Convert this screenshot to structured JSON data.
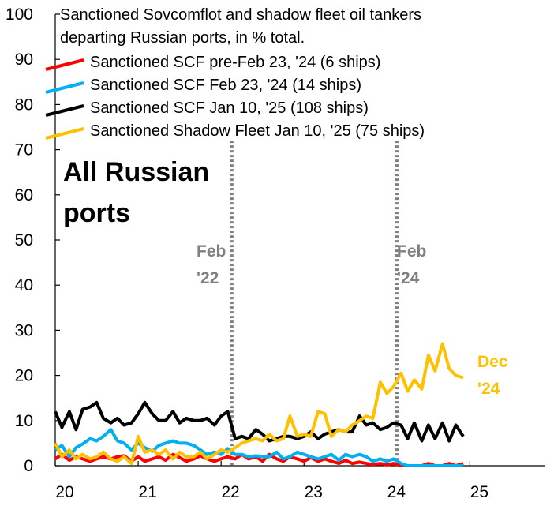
{
  "chart_data": {
    "type": "line",
    "title_lines": [
      "Sanctioned Sovcomflot and shadow fleet oil tankers",
      "departing Russian ports, in % total."
    ],
    "xlim": [
      20,
      25.9
    ],
    "ylim": [
      0,
      100
    ],
    "x_ticks": [
      20,
      21,
      22,
      23,
      24,
      25
    ],
    "x_tick_labels": [
      "20",
      "21",
      "22",
      "23",
      "24",
      "25"
    ],
    "y_ticks": [
      0,
      10,
      20,
      30,
      40,
      50,
      60,
      70,
      80,
      90,
      100
    ],
    "y_tick_labels": [
      "0",
      "10",
      "20",
      "30",
      "40",
      "50",
      "60",
      "70",
      "80",
      "90",
      "100"
    ],
    "grid": false,
    "legend_position": "top-left",
    "annotations": {
      "region_lines": [
        "All Russian",
        "ports"
      ],
      "feb22": [
        "Feb",
        "'22"
      ],
      "feb24": [
        "Feb",
        "'24"
      ],
      "dec24": [
        "Dec",
        "'24"
      ]
    },
    "vlines": [
      22.13,
      24.12
    ],
    "series": [
      {
        "name": "Sanctioned SCF pre-Feb 23, '24 (6 ships)",
        "color": "#FF0000",
        "x": [
          20.0,
          20.08,
          20.17,
          20.25,
          20.33,
          20.42,
          20.5,
          20.58,
          20.67,
          20.75,
          20.83,
          20.92,
          21.0,
          21.08,
          21.17,
          21.25,
          21.33,
          21.42,
          21.5,
          21.58,
          21.67,
          21.75,
          21.83,
          21.92,
          22.0,
          22.08,
          22.17,
          22.25,
          22.33,
          22.42,
          22.5,
          22.58,
          22.67,
          22.75,
          22.83,
          22.92,
          23.0,
          23.08,
          23.17,
          23.25,
          23.33,
          23.42,
          23.5,
          23.58,
          23.67,
          23.75,
          23.83,
          23.92,
          24.0,
          24.08,
          24.17,
          24.25,
          24.33,
          24.42,
          24.5,
          24.58,
          24.67,
          24.75,
          24.83,
          24.92
        ],
        "values": [
          1.5,
          2.5,
          1.2,
          2.0,
          1.5,
          1.0,
          1.5,
          2.0,
          1.5,
          2.0,
          2.2,
          1.0,
          2.0,
          1.0,
          1.5,
          2.0,
          1.2,
          2.5,
          1.8,
          1.0,
          1.5,
          2.2,
          1.5,
          1.0,
          1.5,
          2.0,
          1.5,
          2.5,
          1.5,
          2.0,
          1.0,
          2.5,
          1.5,
          1.0,
          2.0,
          1.5,
          1.0,
          1.8,
          1.0,
          1.5,
          1.0,
          0.5,
          1.2,
          0.5,
          0.8,
          0.5,
          0.3,
          0.5,
          0.2,
          0.5,
          0.0,
          0.0,
          0.0,
          0.0,
          0.5,
          0.0,
          0.0,
          0.5,
          0.0,
          0.5
        ]
      },
      {
        "name": "Sanctioned SCF Feb 23, '24 (14 ships)",
        "color": "#00B0F0",
        "x": [
          20.0,
          20.08,
          20.17,
          20.25,
          20.33,
          20.42,
          20.5,
          20.58,
          20.67,
          20.75,
          20.83,
          20.92,
          21.0,
          21.08,
          21.17,
          21.25,
          21.33,
          21.42,
          21.5,
          21.58,
          21.67,
          21.75,
          21.83,
          21.92,
          22.0,
          22.08,
          22.17,
          22.25,
          22.33,
          22.42,
          22.5,
          22.58,
          22.67,
          22.75,
          22.83,
          22.92,
          23.0,
          23.08,
          23.17,
          23.25,
          23.33,
          23.42,
          23.5,
          23.58,
          23.67,
          23.75,
          23.83,
          23.92,
          24.0,
          24.08,
          24.17,
          24.25,
          24.33,
          24.42,
          24.5,
          24.58,
          24.67,
          24.75,
          24.83,
          24.92
        ],
        "values": [
          3.5,
          4.5,
          2.0,
          4.0,
          4.8,
          6.0,
          5.5,
          6.5,
          8.0,
          5.5,
          5.0,
          3.5,
          5.0,
          4.0,
          3.2,
          4.5,
          5.0,
          5.5,
          5.0,
          5.0,
          4.5,
          3.5,
          2.5,
          3.0,
          2.5,
          3.8,
          2.5,
          2.5,
          2.0,
          2.2,
          2.0,
          2.0,
          3.0,
          1.5,
          2.0,
          3.0,
          2.5,
          2.0,
          1.5,
          2.0,
          2.5,
          1.2,
          2.5,
          2.0,
          2.5,
          2.0,
          1.0,
          1.5,
          1.0,
          1.5,
          0.5,
          0.0,
          0.0,
          0.0,
          0.0,
          0.0,
          0.0,
          0.0,
          0.0,
          0.0
        ]
      },
      {
        "name": "Sanctioned SCF Jan 10, '25 (108 ships)",
        "color": "#000000",
        "x": [
          20.0,
          20.08,
          20.17,
          20.25,
          20.33,
          20.42,
          20.5,
          20.58,
          20.67,
          20.75,
          20.83,
          20.92,
          21.0,
          21.08,
          21.17,
          21.25,
          21.33,
          21.42,
          21.5,
          21.58,
          21.67,
          21.75,
          21.83,
          21.92,
          22.0,
          22.08,
          22.17,
          22.25,
          22.33,
          22.42,
          22.5,
          22.58,
          22.67,
          22.75,
          22.83,
          22.92,
          23.0,
          23.08,
          23.17,
          23.25,
          23.33,
          23.42,
          23.5,
          23.58,
          23.67,
          23.75,
          23.83,
          23.92,
          24.0,
          24.08,
          24.17,
          24.25,
          24.33,
          24.42,
          24.5,
          24.58,
          24.67,
          24.75,
          24.83,
          24.92
        ],
        "values": [
          12.0,
          8.5,
          12.0,
          8.0,
          12.5,
          13.0,
          14.0,
          10.5,
          9.5,
          10.5,
          9.0,
          9.5,
          11.5,
          14.0,
          11.5,
          10.0,
          10.0,
          12.0,
          9.5,
          10.5,
          10.0,
          10.0,
          10.5,
          9.0,
          11.0,
          12.0,
          6.0,
          6.5,
          6.0,
          8.0,
          7.0,
          5.5,
          6.0,
          6.5,
          6.5,
          6.0,
          6.5,
          7.5,
          6.0,
          7.0,
          7.5,
          8.0,
          7.5,
          7.5,
          11.0,
          9.0,
          9.5,
          8.0,
          8.5,
          9.5,
          9.0,
          6.0,
          9.5,
          5.5,
          9.0,
          6.0,
          9.5,
          5.5,
          9.0,
          6.5
        ]
      },
      {
        "name": "Sanctioned Shadow Fleet Jan 10, '25 (75 ships)",
        "color": "#FFC000",
        "x": [
          20.0,
          20.08,
          20.17,
          20.25,
          20.33,
          20.42,
          20.5,
          20.58,
          20.67,
          20.75,
          20.83,
          20.92,
          21.0,
          21.08,
          21.17,
          21.25,
          21.33,
          21.42,
          21.5,
          21.58,
          21.67,
          21.75,
          21.83,
          21.92,
          22.0,
          22.08,
          22.17,
          22.25,
          22.33,
          22.42,
          22.5,
          22.58,
          22.67,
          22.75,
          22.83,
          22.92,
          23.0,
          23.08,
          23.17,
          23.25,
          23.33,
          23.42,
          23.5,
          23.58,
          23.67,
          23.75,
          23.83,
          23.92,
          24.0,
          24.08,
          24.17,
          24.25,
          24.33,
          24.42,
          24.5,
          24.58,
          24.67,
          24.75,
          24.83,
          24.92
        ],
        "values": [
          5.0,
          2.0,
          3.5,
          1.5,
          2.5,
          1.5,
          2.0,
          3.0,
          1.5,
          1.0,
          2.0,
          0.5,
          6.5,
          3.0,
          3.5,
          2.5,
          3.5,
          1.5,
          3.0,
          2.0,
          2.0,
          3.0,
          1.5,
          2.5,
          3.5,
          3.0,
          4.0,
          5.0,
          5.5,
          6.0,
          5.5,
          7.0,
          5.5,
          6.0,
          11.0,
          6.5,
          7.0,
          6.5,
          12.0,
          11.5,
          6.5,
          8.0,
          7.5,
          9.0,
          10.0,
          11.0,
          10.5,
          18.5,
          16.0,
          17.5,
          20.5,
          16.5,
          19.0,
          17.0,
          24.5,
          21.0,
          27.0,
          21.5,
          20.0,
          19.5
        ]
      }
    ]
  }
}
